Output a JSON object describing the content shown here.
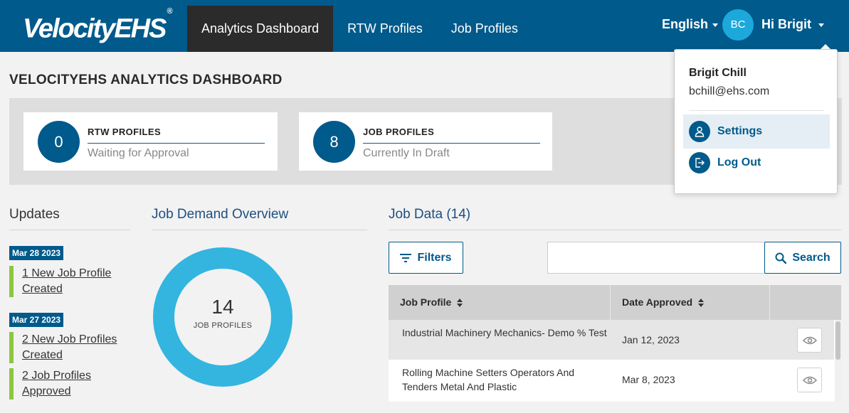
{
  "header": {
    "logo_text": "VelocityEHS",
    "logo_mark": "®",
    "nav": [
      {
        "label": "Analytics Dashboard",
        "active": true
      },
      {
        "label": "RTW Profiles",
        "active": false
      },
      {
        "label": "Job Profiles",
        "active": false
      }
    ],
    "language": "English",
    "avatar_initials": "BC",
    "greeting": "Hi Brigit"
  },
  "page_title": "VELOCITYEHS ANALYTICS DASHBOARD",
  "summary": [
    {
      "count": "0",
      "title": "RTW PROFILES",
      "subtitle": "Waiting for Approval"
    },
    {
      "count": "8",
      "title": "JOB PROFILES",
      "subtitle": "Currently In Draft"
    }
  ],
  "updates": {
    "heading": "Updates",
    "groups": [
      {
        "date": "Mar 28 2023",
        "items": [
          "1 New Job Profile Created"
        ]
      },
      {
        "date": "Mar 27 2023",
        "items": [
          "2 New Job Profiles Created",
          "2 Job Profiles Approved"
        ]
      }
    ]
  },
  "job_demand": {
    "heading": "Job Demand Overview",
    "total": "14",
    "label": "JOB PROFILES",
    "ring_color": "#33b5e0"
  },
  "job_data": {
    "heading": "Job Data (14)",
    "filters_label": "Filters",
    "search_placeholder": "",
    "search_label": "Search",
    "columns": [
      "Job Profile",
      "Date Approved"
    ],
    "rows": [
      {
        "profile": "Industrial Machinery Mechanics- Demo % Test",
        "date": "Jan 12, 2023"
      },
      {
        "profile": "Rolling Machine Setters Operators And Tenders Metal And Plastic",
        "date": "Mar 8, 2023"
      }
    ]
  },
  "user_menu": {
    "name": "Brigit Chill",
    "email": "bchill@ehs.com",
    "items": [
      {
        "label": "Settings",
        "icon": "user-icon"
      },
      {
        "label": "Log Out",
        "icon": "logout-icon"
      }
    ]
  },
  "colors": {
    "primary": "#005a8b",
    "accent_green": "#8dc63f",
    "avatar": "#1da8dc"
  }
}
